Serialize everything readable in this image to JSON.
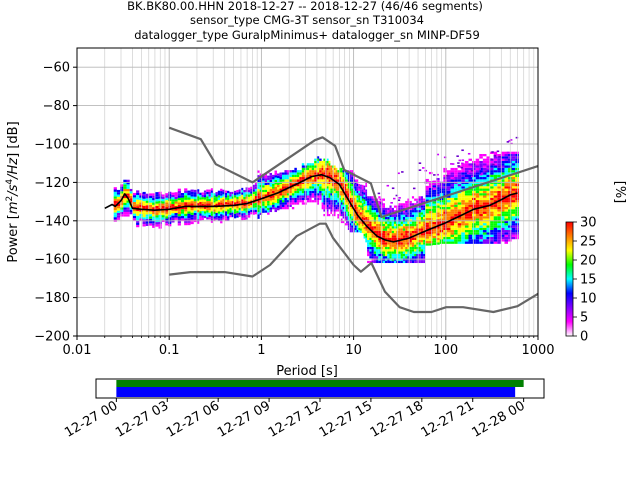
{
  "chart_data": [
    {
      "type": "heatmap",
      "title": [
        "BK.BK80.00.HHN   2018-12-27 -- 2018-12-27  (46/46 segments)",
        "sensor_type CMG-3T sensor_sn T310034",
        "datalogger_type GuralpMinimus+ datalogger_sn MINP-DF59"
      ],
      "xlabel": "Period [s]",
      "ylabel": "Power [m2/s4/Hz] [dB]",
      "ylabel_parts": [
        "Power [",
        "m",
        "2",
        "/s",
        "4",
        "/Hz",
        "] [dB]"
      ],
      "xscale": "log",
      "xlim": [
        0.01,
        1000
      ],
      "ylim": [
        -200,
        -50
      ],
      "xticks": [
        {
          "value": 0.01,
          "label": "0.01"
        },
        {
          "value": 0.1,
          "label": "0.1"
        },
        {
          "value": 1,
          "label": "1"
        },
        {
          "value": 10,
          "label": "10"
        },
        {
          "value": 100,
          "label": "100"
        },
        {
          "value": 1000,
          "label": "1000"
        }
      ],
      "yticks": [
        {
          "value": -60,
          "label": "−60"
        },
        {
          "value": -80,
          "label": "−80"
        },
        {
          "value": -100,
          "label": "−100"
        },
        {
          "value": -120,
          "label": "−120"
        },
        {
          "value": -140,
          "label": "−140"
        },
        {
          "value": -160,
          "label": "−160"
        },
        {
          "value": -180,
          "label": "−180"
        },
        {
          "value": -200,
          "label": "−200"
        }
      ],
      "grid": true,
      "series": [
        {
          "role": "noise-model-high",
          "color": "#666666",
          "points": [
            [
              0.1,
              -91.5
            ],
            [
              0.22,
              -97.5
            ],
            [
              0.32,
              -110.5
            ],
            [
              0.8,
              -120
            ],
            [
              3.8,
              -98
            ],
            [
              4.6,
              -96.5
            ],
            [
              6.3,
              -101
            ],
            [
              7.9,
              -113.5
            ],
            [
              15.4,
              -120.5
            ],
            [
              20,
              -138
            ],
            [
              1000,
              -111.5
            ]
          ]
        },
        {
          "role": "noise-model-low",
          "color": "#666666",
          "points": [
            [
              0.1,
              -168
            ],
            [
              0.17,
              -166.7
            ],
            [
              0.4,
              -166.7
            ],
            [
              0.8,
              -169
            ],
            [
              1.24,
              -163
            ],
            [
              2.4,
              -148
            ],
            [
              4.3,
              -141.5
            ],
            [
              5.0,
              -141.5
            ],
            [
              6.0,
              -149
            ],
            [
              10,
              -163
            ],
            [
              12,
              -166.5
            ],
            [
              15.6,
              -162
            ],
            [
              21.9,
              -177
            ],
            [
              31.6,
              -185
            ],
            [
              45,
              -187.5
            ],
            [
              70,
              -187.5
            ],
            [
              101,
              -185
            ],
            [
              154,
              -185
            ],
            [
              328,
              -187.5
            ],
            [
              600,
              -184.5
            ],
            [
              1000,
              -178
            ]
          ]
        },
        {
          "role": "psd-mean",
          "color": "#000000",
          "points": [
            [
              0.02,
              -133.5
            ],
            [
              0.024,
              -131.5
            ],
            [
              0.026,
              -132.5
            ],
            [
              0.03,
              -129.5
            ],
            [
              0.033,
              -126
            ],
            [
              0.036,
              -128.5
            ],
            [
              0.04,
              -133.5
            ],
            [
              0.05,
              -134
            ],
            [
              0.07,
              -134.5
            ],
            [
              0.1,
              -134
            ],
            [
              0.15,
              -132.5
            ],
            [
              0.3,
              -132.5
            ],
            [
              0.5,
              -132
            ],
            [
              0.7,
              -131
            ],
            [
              1.0,
              -128.5
            ],
            [
              1.5,
              -125.5
            ],
            [
              2.5,
              -120.5
            ],
            [
              3.5,
              -117
            ],
            [
              4.5,
              -116
            ],
            [
              5.5,
              -117.5
            ],
            [
              7,
              -121
            ],
            [
              9,
              -130
            ],
            [
              11,
              -137
            ],
            [
              14,
              -143
            ],
            [
              18,
              -148
            ],
            [
              22,
              -150
            ],
            [
              27,
              -151
            ],
            [
              33,
              -150
            ],
            [
              40,
              -149
            ],
            [
              50,
              -147
            ],
            [
              70,
              -144
            ],
            [
              100,
              -141
            ],
            [
              150,
              -137
            ],
            [
              200,
              -134
            ],
            [
              300,
              -132
            ],
            [
              400,
              -129
            ],
            [
              500,
              -126.5
            ],
            [
              600,
              -125.5
            ]
          ]
        },
        {
          "role": "psd-scatter-upper",
          "color": "#9900cc",
          "points": [
            [
              16,
              -132
            ],
            [
              25,
              -131
            ],
            [
              40,
              -128
            ],
            [
              60,
              -123
            ],
            [
              80,
              -120
            ],
            [
              120,
              -118
            ],
            [
              200,
              -117
            ],
            [
              300,
              -115
            ],
            [
              500,
              -108
            ],
            [
              620,
              -105
            ]
          ]
        }
      ],
      "histogram_rows": [
        {
          "x_from": 0.025,
          "x_to": 0.2,
          "y_from": -139,
          "y_to": -126
        },
        {
          "x_from": 0.2,
          "x_to": 0.9,
          "y_from": -136,
          "y_to": -128
        },
        {
          "x_from": 0.9,
          "x_to": 4.5,
          "y_from": -134,
          "y_to": -114
        },
        {
          "x_from": 4.5,
          "x_to": 14,
          "y_from": -146,
          "y_to": -114
        },
        {
          "x_from": 14,
          "x_to": 60,
          "y_from": -162,
          "y_to": -128
        },
        {
          "x_from": 60,
          "x_to": 620,
          "y_from": -152,
          "y_to": -105
        }
      ],
      "colorbar": {
        "label": "[%]",
        "min": 0,
        "max": 30,
        "ticks": [
          0,
          5,
          10,
          15,
          20,
          25,
          30
        ],
        "colors": [
          "#ffffff",
          "#ff00ff",
          "#8000ff",
          "#0000ff",
          "#00ffff",
          "#00ff00",
          "#ffff00",
          "#ff8000",
          "#ff0000"
        ]
      },
      "time_coverage": {
        "tick_labels": [
          "12-27 00",
          "12-27 03",
          "12-27 06",
          "12-27 09",
          "12-27 12",
          "12-27 15",
          "12-27 18",
          "12-27 21",
          "12-28 00"
        ],
        "tick_hours": [
          0,
          3,
          6,
          9,
          12,
          15,
          18,
          21,
          24
        ],
        "range_hours": [
          -1.2,
          25.2
        ],
        "bars": [
          {
            "role": "data-available",
            "color": "#008000",
            "start_hour": 0,
            "end_hour": 24
          },
          {
            "role": "psd-segments",
            "color": "#0000ff",
            "start_hour": 0,
            "end_hour": 23.5
          }
        ]
      }
    }
  ]
}
